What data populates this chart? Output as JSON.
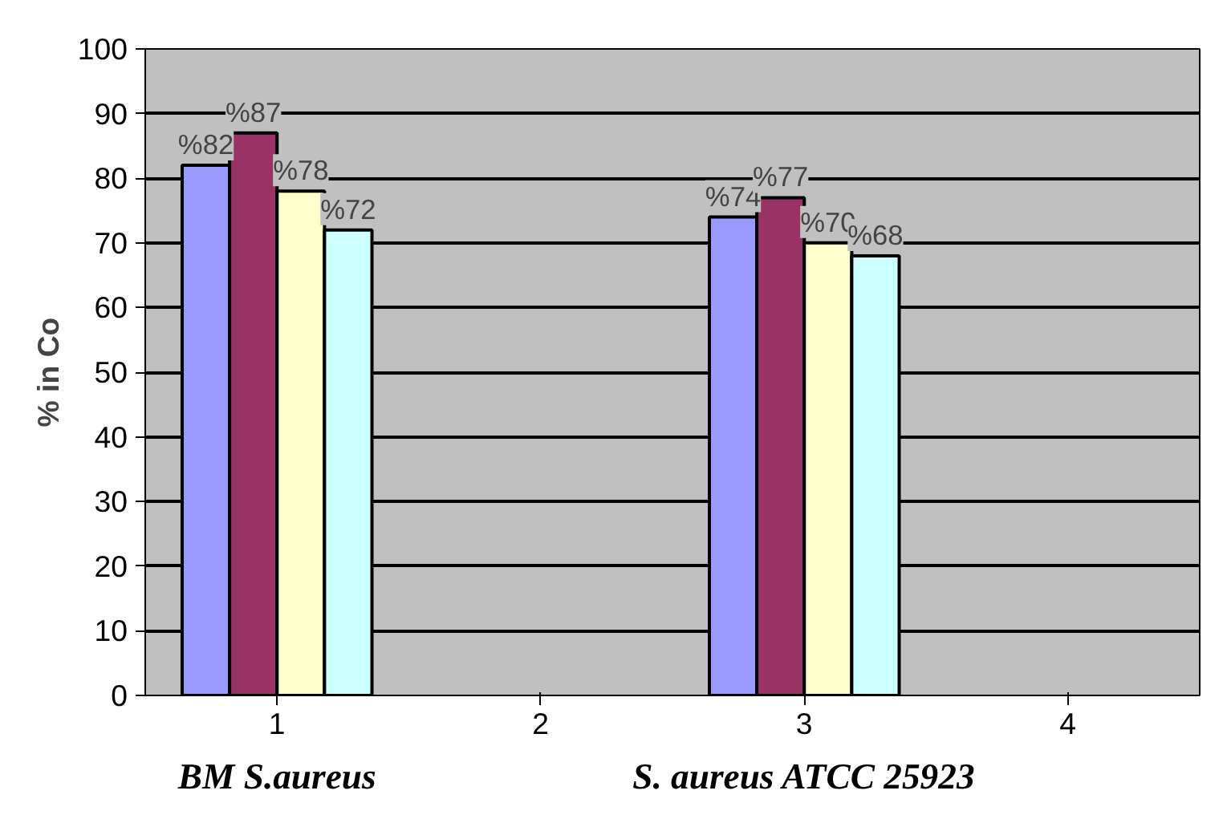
{
  "chart_data": {
    "type": "bar",
    "ylabel": "% in Co",
    "categories": [
      "1",
      "2",
      "3",
      "4"
    ],
    "ylim": [
      0,
      100
    ],
    "yticks": [
      0,
      10,
      20,
      30,
      40,
      50,
      60,
      70,
      80,
      90,
      100
    ],
    "grid": "y",
    "series": [
      {
        "color": "#9999ff",
        "values": [
          82,
          null,
          74,
          null
        ],
        "value_labels": [
          "%82",
          null,
          "%74",
          null
        ]
      },
      {
        "color": "#993366",
        "values": [
          87,
          null,
          77,
          null
        ],
        "value_labels": [
          "%87",
          null,
          "%77",
          null
        ]
      },
      {
        "color": "#ffffcc",
        "values": [
          78,
          null,
          70,
          null
        ],
        "value_labels": [
          "%78",
          null,
          "%70",
          null
        ]
      },
      {
        "color": "#ccffff",
        "values": [
          72,
          null,
          68,
          null
        ],
        "value_labels": [
          "%72",
          null,
          "%68",
          null
        ]
      }
    ],
    "annotations": [
      "BM S.aureus",
      "S. aureus ATCC 25923"
    ]
  }
}
